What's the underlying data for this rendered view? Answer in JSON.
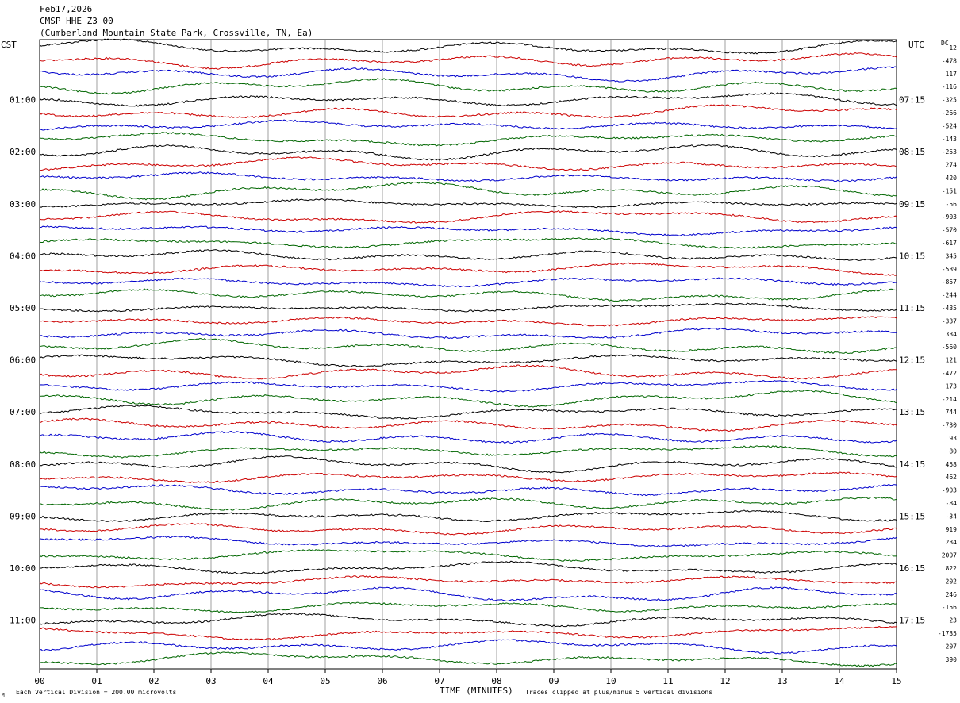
{
  "header": {
    "date": "Feb17,2026",
    "station": "CMSP HHE Z3 00",
    "location": "(Cumberland Mountain State Park, Crossville, TN, Ea)"
  },
  "left_axis_label": "CST",
  "right_axis_label": "UTC",
  "dc_label": "DC",
  "footer": {
    "scale": "Each Vertical Division =  200.00 microvolts",
    "xlabel": "TIME (MINUTES)",
    "clip_note": "Traces clipped at plus/minus 5 vertical divisions",
    "corner_mark": "M"
  },
  "colors": {
    "trace_cycle": [
      "#000000",
      "#cc0000",
      "#0000cc",
      "#006600"
    ],
    "grid": "#888888",
    "text": "#000000"
  },
  "chart_data": {
    "type": "line",
    "title": "CMSP HHE Z3 00",
    "xlabel": "TIME (MINUTES)",
    "xlim": [
      0,
      15
    ],
    "x_ticks": [
      "00",
      "01",
      "02",
      "03",
      "04",
      "05",
      "06",
      "07",
      "08",
      "09",
      "10",
      "11",
      "12",
      "13",
      "14",
      "15"
    ],
    "trace_count": 48,
    "minutes_per_trace": 15,
    "left_time_labels": [
      "01:00",
      "02:00",
      "03:00",
      "04:00",
      "05:00",
      "06:00",
      "07:00",
      "08:00",
      "09:00",
      "10:00",
      "11:00"
    ],
    "left_label_trace_index": [
      4,
      8,
      12,
      16,
      20,
      24,
      28,
      32,
      36,
      40,
      44
    ],
    "right_time_labels": [
      "07:15",
      "08:15",
      "09:15",
      "10:15",
      "11:15",
      "12:15",
      "13:15",
      "14:15",
      "15:15",
      "16:15",
      "17:15"
    ],
    "right_label_trace_index": [
      4,
      8,
      12,
      16,
      20,
      24,
      28,
      32,
      36,
      40,
      44
    ],
    "dc_offsets": [
      "12",
      "-478",
      "117",
      "-116",
      "-325",
      "-266",
      "-524",
      "-143",
      "-253",
      "274",
      "420",
      "-151",
      "-56",
      "-903",
      "-570",
      "-617",
      "345",
      "-539",
      "-857",
      "-244",
      "-435",
      "-337",
      "334",
      "-560",
      "121",
      "-472",
      "173",
      "-214",
      "744",
      "-730",
      "93",
      "80",
      "458",
      "462",
      "-903",
      "-84",
      "-34",
      "919",
      "234",
      "2007",
      "822",
      "202",
      "246",
      "-156",
      "23",
      "-1735",
      "-207",
      "390"
    ],
    "grid": true
  }
}
